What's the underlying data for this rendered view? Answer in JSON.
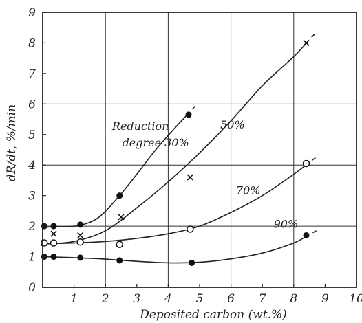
{
  "chart_data": {
    "type": "scatter",
    "xlabel": "Deposited carbon (wt.%)",
    "ylabel": "dR/dt, %/min",
    "xlim": [
      0,
      10
    ],
    "ylim": [
      0,
      9
    ],
    "x_ticks": [
      "1",
      "2",
      "3",
      "4",
      "5",
      "6",
      "7",
      "8",
      "9",
      "10"
    ],
    "y_ticks": [
      "0",
      "1",
      "2",
      "3",
      "4",
      "5",
      "6",
      "7",
      "8",
      "9"
    ],
    "grid": true,
    "series": [
      {
        "name": "Reduction degree 30%",
        "label_lines": [
          "Reduction",
          "degree 30%"
        ],
        "marker": "filled-circle",
        "points": [
          [
            0.05,
            2.0
          ],
          [
            0.35,
            2.0
          ],
          [
            1.2,
            2.05
          ],
          [
            2.45,
            3.0
          ],
          [
            4.65,
            5.65
          ]
        ],
        "curve": [
          [
            0.05,
            1.97
          ],
          [
            0.6,
            1.98
          ],
          [
            1.2,
            2.03
          ],
          [
            1.8,
            2.3
          ],
          [
            2.45,
            3.0
          ],
          [
            3.0,
            3.7
          ],
          [
            3.6,
            4.5
          ],
          [
            4.2,
            5.2
          ],
          [
            4.65,
            5.7
          ]
        ]
      },
      {
        "name": "50%",
        "label_lines": [
          "50%"
        ],
        "marker": "cross",
        "points": [
          [
            0.05,
            1.45
          ],
          [
            0.35,
            1.75
          ],
          [
            1.2,
            1.7
          ],
          [
            2.5,
            2.3
          ],
          [
            4.7,
            3.6
          ],
          [
            8.4,
            8.0
          ]
        ],
        "curve": [
          [
            0.05,
            1.42
          ],
          [
            1.0,
            1.5
          ],
          [
            2.0,
            1.85
          ],
          [
            3.0,
            2.6
          ],
          [
            4.0,
            3.45
          ],
          [
            5.0,
            4.4
          ],
          [
            6.0,
            5.45
          ],
          [
            7.0,
            6.6
          ],
          [
            8.0,
            7.55
          ],
          [
            8.45,
            8.05
          ]
        ]
      },
      {
        "name": "70%",
        "label_lines": [
          "70%"
        ],
        "marker": "open-circle",
        "points": [
          [
            0.05,
            1.45
          ],
          [
            0.35,
            1.45
          ],
          [
            1.2,
            1.48
          ],
          [
            2.45,
            1.4
          ],
          [
            4.7,
            1.9
          ],
          [
            8.4,
            4.05
          ]
        ],
        "curve": [
          [
            0.05,
            1.42
          ],
          [
            1.0,
            1.45
          ],
          [
            2.0,
            1.5
          ],
          [
            3.0,
            1.6
          ],
          [
            4.0,
            1.75
          ],
          [
            5.0,
            2.0
          ],
          [
            6.0,
            2.45
          ],
          [
            7.0,
            3.0
          ],
          [
            8.0,
            3.7
          ],
          [
            8.45,
            4.05
          ]
        ]
      },
      {
        "name": "90%",
        "label_lines": [
          "90%"
        ],
        "marker": "filled-circle",
        "points": [
          [
            0.05,
            1.0
          ],
          [
            0.35,
            1.0
          ],
          [
            1.2,
            0.97
          ],
          [
            2.45,
            0.88
          ],
          [
            4.75,
            0.8
          ],
          [
            8.4,
            1.7
          ]
        ],
        "curve": [
          [
            0.05,
            1.0
          ],
          [
            1.0,
            0.97
          ],
          [
            2.0,
            0.92
          ],
          [
            3.0,
            0.85
          ],
          [
            4.0,
            0.8
          ],
          [
            5.0,
            0.82
          ],
          [
            6.0,
            0.93
          ],
          [
            7.0,
            1.12
          ],
          [
            8.0,
            1.45
          ],
          [
            8.45,
            1.7
          ]
        ]
      }
    ]
  }
}
